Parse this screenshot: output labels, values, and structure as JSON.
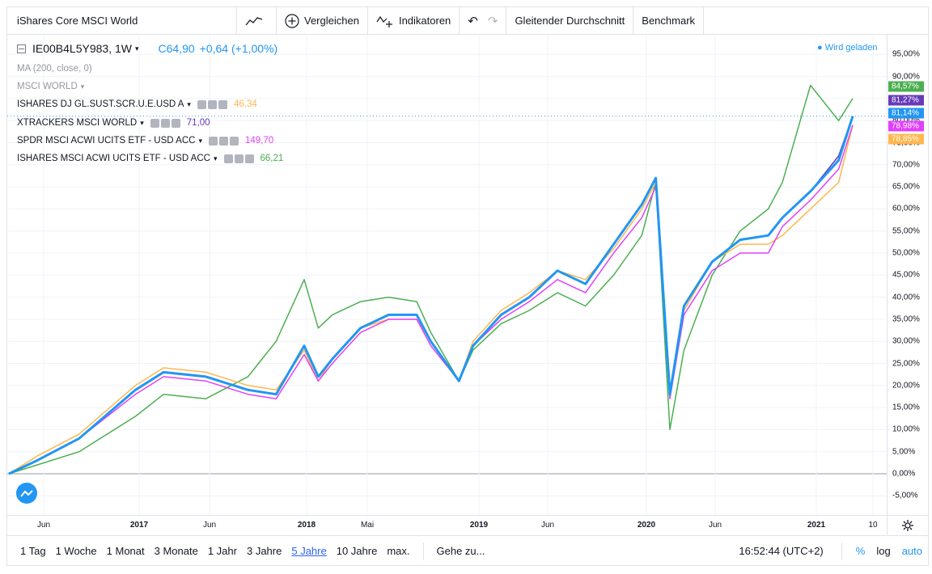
{
  "toolbar": {
    "title": "iShares Core MSCI World",
    "compare": "Vergleichen",
    "indicators": "Indikatoren",
    "moving_average": "Gleitender Durchschnitt",
    "benchmark": "Benchmark"
  },
  "legend": {
    "symbol": "IE00B4L5Y983, 1W",
    "close": "C64,90",
    "change": "+0,64 (+1,00%)",
    "ma": "MA (200, close, 0)",
    "msci_world": "MSCI WORLD",
    "series": [
      {
        "name": "ISHARES DJ GL.SUST.SCR.U.E.USD A",
        "value": "46,34",
        "color": "#ffb74d"
      },
      {
        "name": "XTRACKERS MSCI WORLD",
        "value": "71,00",
        "color": "#673ab7"
      },
      {
        "name": "SPDR MSCI ACWI UCITS ETF - USD ACC",
        "value": "149,70",
        "color": "#e040fb"
      },
      {
        "name": "ISHARES MSCI ACWI UCITS ETF - USD ACC",
        "value": "66,21",
        "color": "#4caf50"
      }
    ],
    "loading": "Wird geladen"
  },
  "price_axis": {
    "ticks": [
      "95,00%",
      "90,00%",
      "85,00%",
      "80,00%",
      "75,00%",
      "70,00%",
      "65,00%",
      "60,00%",
      "55,00%",
      "50,00%",
      "45,00%",
      "40,00%",
      "35,00%",
      "30,00%",
      "25,00%",
      "20,00%",
      "15,00%",
      "10,00%",
      "5,00%",
      "0,00%",
      "-5,00%"
    ],
    "badges": [
      {
        "label": "84,57%",
        "color": "#4caf50"
      },
      {
        "label": "81,27%",
        "color": "#673ab7"
      },
      {
        "label": "81,14%",
        "color": "#2196f3"
      },
      {
        "label": "78,98%",
        "color": "#e040fb"
      },
      {
        "label": "78,85%",
        "color": "#ffb74d"
      }
    ]
  },
  "time_axis": {
    "ticks": [
      {
        "label": "Jun",
        "bold": false
      },
      {
        "label": "2017",
        "bold": true
      },
      {
        "label": "Jun",
        "bold": false
      },
      {
        "label": "2018",
        "bold": true
      },
      {
        "label": "Mai",
        "bold": false
      },
      {
        "label": "2019",
        "bold": true
      },
      {
        "label": "Jun",
        "bold": false
      },
      {
        "label": "2020",
        "bold": true
      },
      {
        "label": "Jun",
        "bold": false
      },
      {
        "label": "2021",
        "bold": true
      },
      {
        "label": "10",
        "bold": false
      }
    ]
  },
  "bottom": {
    "ranges": [
      "1 Tag",
      "1 Woche",
      "1 Monat",
      "3 Monate",
      "1 Jahr",
      "3 Jahre",
      "5 Jahre",
      "10 Jahre",
      "max."
    ],
    "active_range": "5 Jahre",
    "goto": "Gehe zu...",
    "clock": "16:52:44 (UTC+2)",
    "percent": "%",
    "log": "log",
    "auto": "auto"
  },
  "chart_data": {
    "type": "line",
    "yunit": "%",
    "ylim": [
      -10,
      100
    ],
    "x": [
      "2016-04",
      "2016-06",
      "2016-09",
      "2017-01",
      "2017-03",
      "2017-06",
      "2017-09",
      "2017-11",
      "2018-01",
      "2018-02",
      "2018-03",
      "2018-05",
      "2018-07",
      "2018-09",
      "2018-10",
      "2018-12",
      "2019-01",
      "2019-03",
      "2019-05",
      "2019-07",
      "2019-09",
      "2019-11",
      "2020-01",
      "2020-02",
      "2020-03",
      "2020-04",
      "2020-06",
      "2020-08",
      "2020-10",
      "2020-11",
      "2021-01",
      "2021-03",
      "2021-04"
    ],
    "series": [
      {
        "name": "iShares Core MSCI World",
        "color": "#2196f3",
        "values": [
          0,
          3,
          8,
          19,
          23,
          22,
          19,
          18,
          29,
          22,
          26,
          33,
          36,
          36,
          30,
          21,
          29,
          36,
          40,
          46,
          43,
          52,
          61,
          67,
          18,
          38,
          48,
          53,
          54,
          58,
          64,
          71,
          81
        ]
      },
      {
        "name": "ISHARES DJ GL.SUST.SCR.U.E.USD A",
        "color": "#ffb74d",
        "values": [
          0,
          4,
          9,
          20,
          24,
          23,
          20,
          19,
          28,
          21,
          26,
          33,
          35,
          35,
          30,
          21,
          30,
          37,
          41,
          46,
          44,
          51,
          60,
          66,
          19,
          37,
          48,
          52,
          52,
          54,
          60,
          66,
          79
        ]
      },
      {
        "name": "XTRACKERS MSCI WORLD",
        "color": "#673ab7",
        "values": [
          0,
          3,
          8,
          19,
          23,
          22,
          19,
          18,
          29,
          22,
          26,
          33,
          36,
          36,
          30,
          21,
          29,
          36,
          40,
          46,
          43,
          52,
          61,
          67,
          18,
          38,
          48,
          53,
          54,
          58,
          64,
          72,
          81
        ]
      },
      {
        "name": "SPDR MSCI ACWI UCITS ETF - USD ACC",
        "color": "#e040fb",
        "values": [
          0,
          3,
          8,
          18,
          22,
          21,
          18,
          17,
          27,
          21,
          25,
          32,
          35,
          35,
          29,
          21,
          29,
          35,
          39,
          44,
          41,
          50,
          58,
          65,
          17,
          36,
          46,
          50,
          50,
          56,
          62,
          69,
          79
        ]
      },
      {
        "name": "ISHARES MSCI ACWI UCITS ETF - USD ACC",
        "color": "#4caf50",
        "values": [
          0,
          2,
          5,
          13,
          18,
          17,
          22,
          30,
          44,
          33,
          36,
          39,
          40,
          39,
          32,
          21,
          28,
          34,
          37,
          41,
          38,
          45,
          54,
          66,
          10,
          28,
          45,
          55,
          60,
          66,
          88,
          80,
          85
        ]
      }
    ]
  }
}
